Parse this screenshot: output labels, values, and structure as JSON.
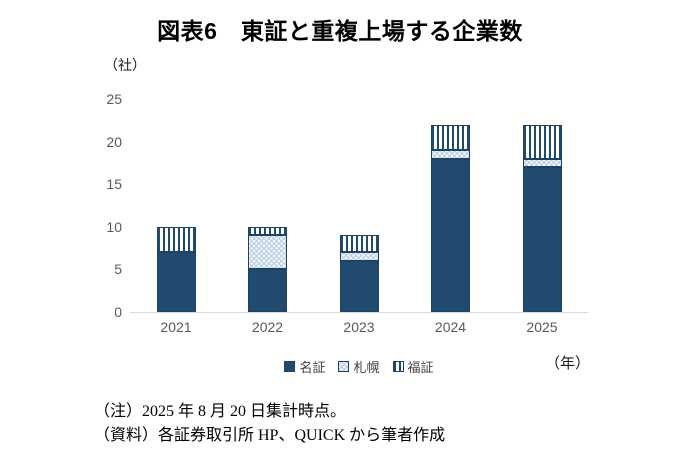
{
  "title": "図表6　東証と重複上場する企業数",
  "chart_data": {
    "type": "bar",
    "stacked": true,
    "title": "図表6　東証と重複上場する企業数",
    "categories": [
      "2021",
      "2022",
      "2023",
      "2024",
      "2025"
    ],
    "series": [
      {
        "name": "名証",
        "key": "nagoya",
        "style": "solid",
        "values": [
          7,
          5,
          6,
          18,
          17
        ]
      },
      {
        "name": "札幌",
        "key": "sapporo",
        "style": "dots",
        "values": [
          0,
          4,
          1,
          1,
          1
        ]
      },
      {
        "name": "福証",
        "key": "fukuoka",
        "style": "vstripes",
        "values": [
          3,
          1,
          2,
          3,
          4
        ]
      }
    ],
    "totals": [
      10,
      10,
      9,
      22,
      22
    ],
    "xlabel": "（年）",
    "ylabel": "（社）",
    "ylim": [
      0,
      25
    ],
    "yticks": [
      0,
      5,
      10,
      15,
      20,
      25
    ],
    "grid": false,
    "legend_position": "bottom"
  },
  "notes": [
    "（注）2025 年 8 月 20 日集計時点。",
    "（資料）各証券取引所 HP、QUICK から筆者作成"
  ],
  "colors": {
    "bar_navy": "#204A6E",
    "bar_light_blue": "#BDD3EA",
    "pattern_white": "#FFFFFF",
    "segment_border": "#1D4264",
    "axis_text": "#595959",
    "axis_line": "#D9D9D9",
    "legend_text": "#404040",
    "title_text": "#000000"
  }
}
